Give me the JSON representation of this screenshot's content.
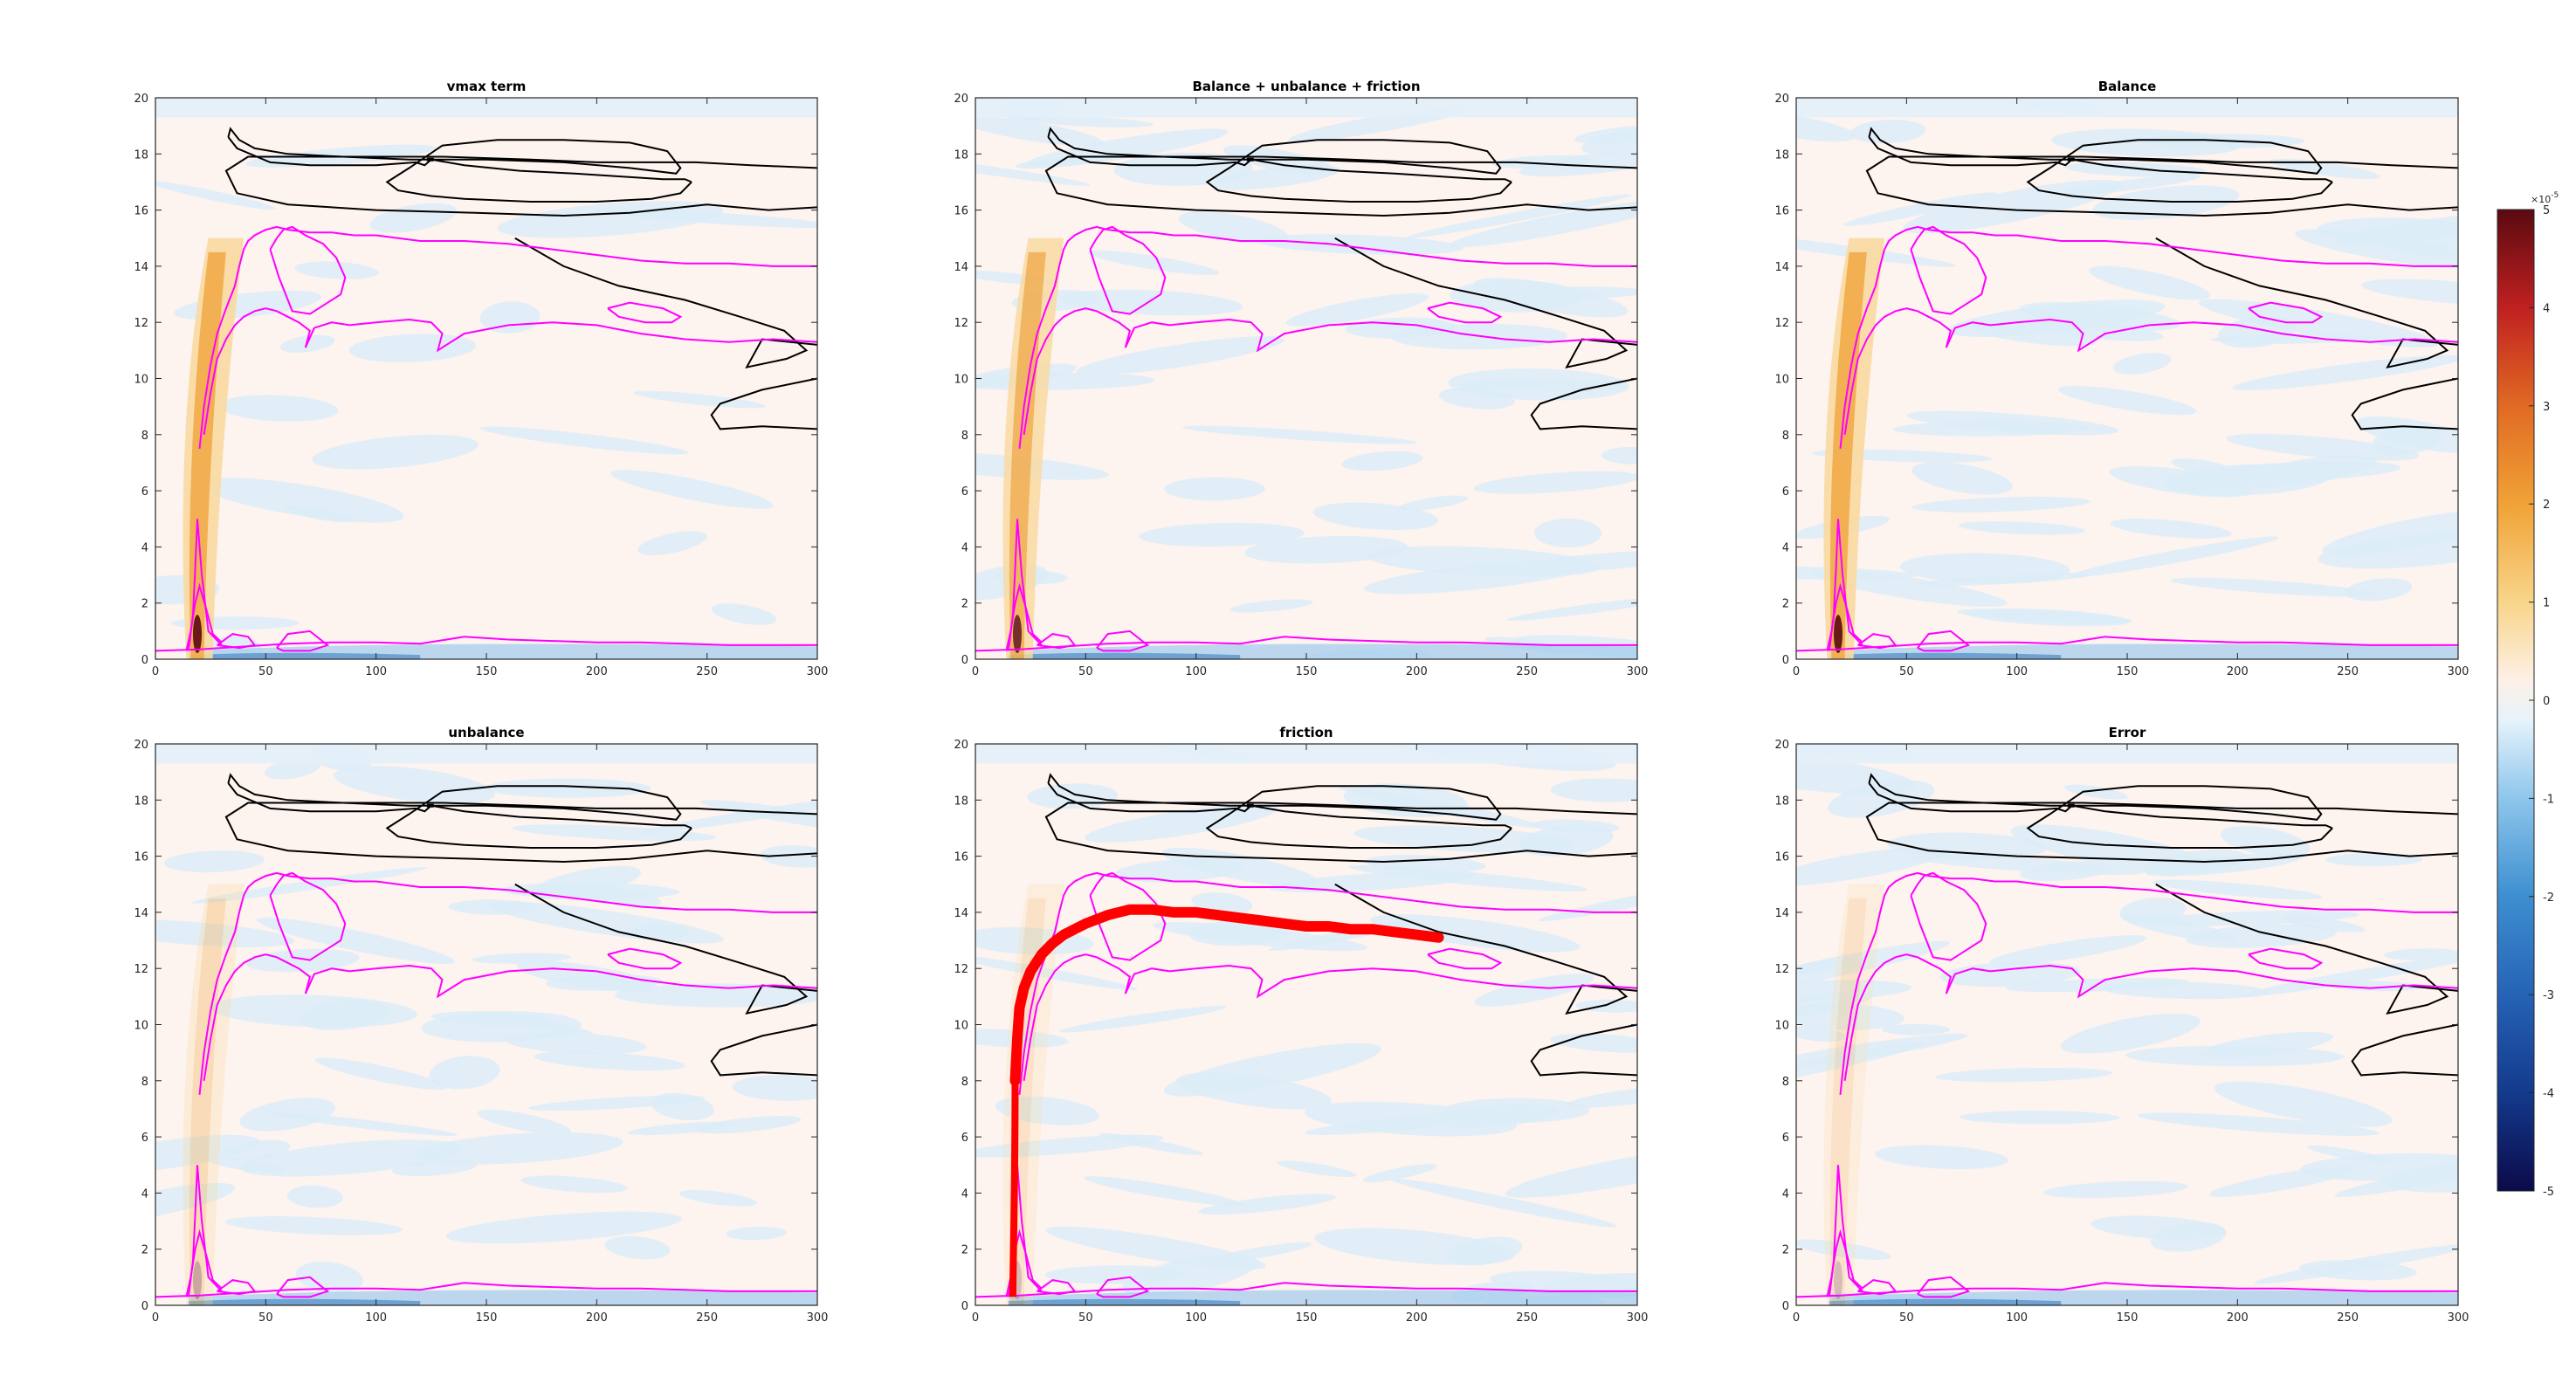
{
  "chart_data": {
    "type": "heatmap",
    "layout": "2x3 grid with shared colorbar",
    "panels": [
      {
        "title": "vmax term"
      },
      {
        "title": "Balance + unbalance + friction"
      },
      {
        "title": "Balance"
      },
      {
        "title": "unbalance"
      },
      {
        "title": "friction"
      },
      {
        "title": "Error"
      }
    ],
    "xlim": [
      0,
      300
    ],
    "ylim": [
      0,
      20
    ],
    "xticks": [
      0,
      50,
      100,
      150,
      200,
      250,
      300
    ],
    "yticks": [
      0,
      2,
      4,
      6,
      8,
      10,
      12,
      14,
      16,
      18,
      20
    ],
    "colorbar": {
      "limits": [
        -5,
        5
      ],
      "ticks": [
        -5,
        -4,
        -3,
        -2,
        -1,
        0,
        1,
        2,
        3,
        4,
        5
      ],
      "exponent_base": "×10",
      "exponent_power": "-5",
      "colormap": "blue-white-red diverging"
    },
    "contour_colors": {
      "black_contour": "#000000",
      "magenta_contour": "#ff00ff",
      "friction_curve": "#ff0000"
    },
    "friction_curve": {
      "color": "#ff0000",
      "x": [
        18,
        19,
        20,
        22,
        25,
        30,
        35,
        40,
        45,
        50,
        60,
        70,
        80,
        90,
        100,
        110,
        120,
        130,
        140,
        150,
        160,
        170,
        180,
        190,
        200,
        210
      ],
      "y": [
        8,
        9.5,
        10.6,
        11.3,
        11.9,
        12.5,
        12.9,
        13.2,
        13.4,
        13.6,
        13.9,
        14.1,
        14.1,
        14.0,
        14.0,
        13.9,
        13.8,
        13.7,
        13.6,
        13.5,
        13.5,
        13.4,
        13.4,
        13.3,
        13.2,
        13.1
      ]
    },
    "black_contours": [
      {
        "x": [
          33,
          37,
          43,
          52,
          70,
          100,
          118,
          122,
          125,
          140,
          165,
          190,
          210,
          230,
          240,
          243
        ],
        "y": [
          18.6,
          18.2,
          18.0,
          17.7,
          17.6,
          17.6,
          17.7,
          17.6,
          17.8,
          17.6,
          17.4,
          17.3,
          17.2,
          17.1,
          17.1,
          17.0
        ]
      },
      {
        "x": [
          243,
          238,
          225,
          200,
          170,
          140,
          125,
          110,
          105,
          115,
          130,
          155,
          185,
          215,
          232,
          238,
          236,
          215,
          185,
          150,
          115,
          85,
          60,
          45,
          38,
          35,
          34,
          33
        ],
        "y": [
          17.0,
          16.6,
          16.4,
          16.3,
          16.3,
          16.4,
          16.5,
          16.7,
          17.0,
          17.5,
          18.3,
          18.5,
          18.5,
          18.4,
          18.1,
          17.5,
          17.3,
          17.5,
          17.7,
          17.8,
          17.8,
          17.9,
          18.0,
          18.2,
          18.5,
          18.8,
          18.9,
          18.6
        ]
      },
      {
        "x": [
          300,
          270,
          245,
          225,
          200,
          170,
          130,
          95,
          65,
          42,
          32,
          37,
          60,
          100,
          145,
          185,
          215,
          250,
          278,
          300
        ],
        "y": [
          17.5,
          17.6,
          17.7,
          17.7,
          17.7,
          17.8,
          17.9,
          17.9,
          17.9,
          17.9,
          17.4,
          16.6,
          16.2,
          16.0,
          15.9,
          15.8,
          15.9,
          16.2,
          16.0,
          16.1
        ]
      },
      {
        "x": [
          163,
          185,
          210,
          240,
          265,
          285,
          295,
          286,
          268,
          275,
          300
        ],
        "y": [
          15.0,
          14.0,
          13.3,
          12.8,
          12.2,
          11.7,
          11.0,
          10.7,
          10.4,
          11.4,
          11.2
        ]
      },
      {
        "x": [
          300,
          275,
          256,
          252,
          256,
          275,
          300
        ],
        "y": [
          10.0,
          9.6,
          9.1,
          8.7,
          8.2,
          8.3,
          8.2
        ]
      }
    ],
    "magenta_contours": [
      {
        "x": [
          20,
          22,
          25,
          28,
          32,
          36,
          38,
          40,
          42,
          45,
          50,
          55,
          60,
          70,
          80,
          90,
          100,
          110,
          120,
          130,
          140,
          160,
          180,
          200,
          220,
          240,
          260,
          280,
          300
        ],
        "y": [
          7.5,
          9,
          10.5,
          11.6,
          12.5,
          13.3,
          14.0,
          14.6,
          14.9,
          15.1,
          15.3,
          15.4,
          15.3,
          15.2,
          15.2,
          15.1,
          15.1,
          15.0,
          14.9,
          14.9,
          14.9,
          14.8,
          14.6,
          14.4,
          14.2,
          14.1,
          14.1,
          14.0,
          14.0
        ]
      },
      {
        "x": [
          22,
          25,
          28,
          32,
          36,
          40,
          45,
          50,
          55,
          60,
          65,
          70,
          68,
          72,
          80,
          88,
          100,
          115,
          125,
          130,
          128,
          140,
          160,
          180,
          200,
          220,
          240,
          260,
          280,
          300
        ],
        "y": [
          8.0,
          9.5,
          10.7,
          11.4,
          11.9,
          12.2,
          12.4,
          12.5,
          12.4,
          12.2,
          12.0,
          11.7,
          11.1,
          11.8,
          12.0,
          11.9,
          12.0,
          12.1,
          12.0,
          11.6,
          11.0,
          11.6,
          11.9,
          12.0,
          11.9,
          11.6,
          11.4,
          11.3,
          11.4,
          11.3
        ]
      },
      {
        "x": [
          52,
          55,
          58,
          62,
          68,
          76,
          82,
          86,
          84,
          78,
          70,
          62,
          56,
          52
        ],
        "y": [
          14.6,
          15.0,
          15.3,
          15.4,
          15.1,
          14.8,
          14.3,
          13.6,
          13.0,
          12.7,
          12.3,
          12.4,
          13.6,
          14.6
        ]
      },
      {
        "x": [
          205,
          215,
          230,
          238,
          234,
          222,
          210,
          205
        ],
        "y": [
          12.5,
          12.7,
          12.5,
          12.2,
          12.0,
          12.0,
          12.2,
          12.5
        ]
      },
      {
        "x": [
          15,
          17,
          18,
          19,
          21,
          24,
          30
        ],
        "y": [
          0.3,
          1.6,
          3.2,
          5.0,
          3.0,
          1.0,
          0.5
        ]
      },
      {
        "x": [
          14,
          16,
          18,
          20,
          23,
          26,
          30
        ],
        "y": [
          0.3,
          1.0,
          2.0,
          2.6,
          1.8,
          0.9,
          0.6
        ]
      },
      {
        "x": [
          0,
          20,
          40,
          60,
          80,
          100,
          120,
          140,
          160,
          180,
          200,
          220,
          240,
          260,
          280,
          300
        ],
        "y": [
          0.3,
          0.35,
          0.45,
          0.55,
          0.6,
          0.6,
          0.55,
          0.8,
          0.7,
          0.65,
          0.6,
          0.6,
          0.55,
          0.5,
          0.5,
          0.5
        ]
      },
      {
        "x": [
          28,
          35,
          42,
          45,
          38,
          28
        ],
        "y": [
          0.5,
          0.9,
          0.8,
          0.5,
          0.4,
          0.5
        ]
      },
      {
        "x": [
          55,
          60,
          70,
          78,
          70,
          58,
          55
        ],
        "y": [
          0.4,
          0.9,
          1.0,
          0.5,
          0.3,
          0.3,
          0.4
        ]
      }
    ]
  }
}
